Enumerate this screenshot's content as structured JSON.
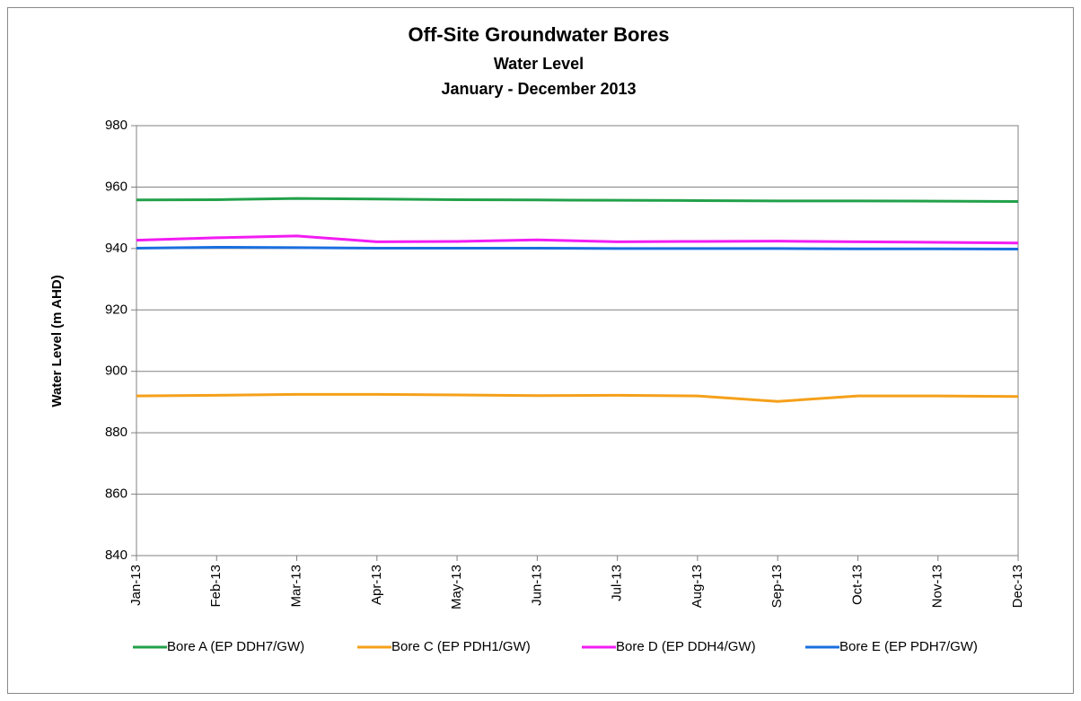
{
  "chart_data": {
    "type": "line",
    "title": "Off-Site Groundwater Bores",
    "subtitle": [
      "Water Level",
      "January - December 2013"
    ],
    "y_label": "Water Level (m AHD)",
    "categories": [
      "Jan-13",
      "Feb-13",
      "Mar-13",
      "Apr-13",
      "May-13",
      "Jun-13",
      "Jul-13",
      "Aug-13",
      "Sep-13",
      "Oct-13",
      "Nov-13",
      "Dec-13"
    ],
    "series": [
      {
        "name": "Bore A (EP DDH7/GW)",
        "color": "#22a14a",
        "values": [
          955.8,
          955.9,
          956.3,
          956.1,
          955.9,
          955.8,
          955.7,
          955.6,
          955.5,
          955.5,
          955.4,
          955.3
        ]
      },
      {
        "name": "Bore C (EP PDH1/GW)",
        "color": "#f5a01a",
        "values": [
          892.0,
          892.2,
          892.5,
          892.5,
          892.3,
          892.1,
          892.2,
          892.0,
          890.2,
          892.0,
          892.0,
          891.8
        ]
      },
      {
        "name": "Bore D (EP DDH4/GW)",
        "color": "#f21cf2",
        "values": [
          942.7,
          943.5,
          944.1,
          942.2,
          942.3,
          942.8,
          942.2,
          942.3,
          942.4,
          942.2,
          942.0,
          941.8
        ]
      },
      {
        "name": "Bore E (EP PDH7/GW)",
        "color": "#1a6fdf",
        "values": [
          940.1,
          940.4,
          940.3,
          940.1,
          940.1,
          940.1,
          940.0,
          940.0,
          940.0,
          939.9,
          939.9,
          939.8
        ]
      }
    ],
    "ylim": [
      840,
      980
    ],
    "yticks": [
      840,
      860,
      880,
      900,
      920,
      940,
      960,
      980
    ],
    "grid": true,
    "legend": "bottom"
  }
}
